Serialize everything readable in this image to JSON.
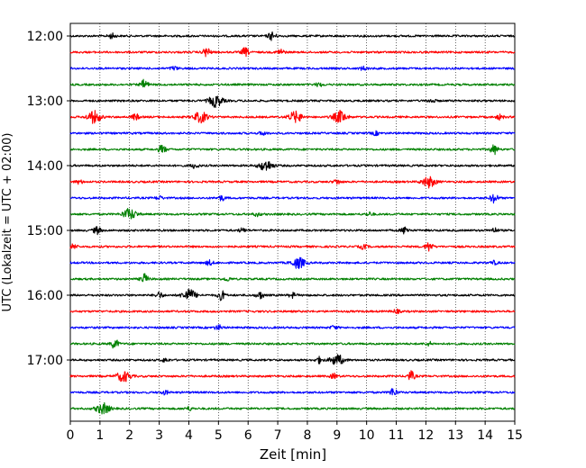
{
  "chart_data": {
    "type": "line",
    "xlabel": "Zeit  [min]",
    "ylabel": "UTC (Lokalzeit = UTC + 02:00)",
    "xlim": [
      0,
      15
    ],
    "x_ticks": [
      0,
      1,
      2,
      3,
      4,
      5,
      6,
      7,
      8,
      9,
      10,
      11,
      12,
      13,
      14,
      15
    ],
    "y_ticks": [
      "12:00",
      "13:00",
      "14:00",
      "15:00",
      "16:00",
      "17:00"
    ],
    "grid": "vertical dotted",
    "color_cycle": [
      "#000000",
      "#ff0000",
      "#0000ff",
      "#008000"
    ],
    "series": [
      {
        "start": "12:00",
        "events": [
          [
            1.4,
            0.4
          ],
          [
            6.8,
            0.7
          ]
        ]
      },
      {
        "start": "12:15",
        "events": [
          [
            4.6,
            0.8
          ],
          [
            5.9,
            0.7
          ],
          [
            7.1,
            0.5
          ]
        ]
      },
      {
        "start": "12:30",
        "events": [
          [
            3.5,
            0.3
          ],
          [
            9.9,
            0.3
          ]
        ]
      },
      {
        "start": "12:45",
        "events": [
          [
            2.5,
            0.8
          ],
          [
            8.4,
            0.3
          ]
        ]
      },
      {
        "start": "13:00",
        "events": [
          [
            4.9,
            1.0
          ],
          [
            12.2,
            0.3
          ]
        ]
      },
      {
        "start": "13:15",
        "events": [
          [
            0.8,
            1.0
          ],
          [
            4.4,
            0.9
          ],
          [
            7.6,
            0.9
          ],
          [
            9.1,
            1.0
          ],
          [
            2.2,
            0.5
          ],
          [
            14.5,
            0.4
          ]
        ]
      },
      {
        "start": "13:30",
        "events": [
          [
            6.5,
            0.3
          ],
          [
            10.3,
            0.3
          ]
        ]
      },
      {
        "start": "13:45",
        "events": [
          [
            3.1,
            0.7
          ],
          [
            14.3,
            0.8
          ]
        ]
      },
      {
        "start": "14:00",
        "events": [
          [
            6.6,
            0.9
          ],
          [
            4.2,
            0.4
          ]
        ]
      },
      {
        "start": "14:15",
        "events": [
          [
            12.1,
            0.9
          ],
          [
            9.0,
            0.4
          ],
          [
            0.3,
            0.3
          ]
        ]
      },
      {
        "start": "14:30",
        "events": [
          [
            14.3,
            0.8
          ],
          [
            5.1,
            0.4
          ],
          [
            3.0,
            0.3
          ]
        ]
      },
      {
        "start": "14:45",
        "events": [
          [
            2.0,
            0.9
          ],
          [
            6.3,
            0.3
          ],
          [
            10.1,
            0.3
          ]
        ]
      },
      {
        "start": "15:00",
        "events": [
          [
            0.9,
            0.6
          ],
          [
            11.3,
            0.6
          ],
          [
            14.3,
            0.4
          ],
          [
            5.8,
            0.3
          ]
        ]
      },
      {
        "start": "15:15",
        "events": [
          [
            12.1,
            0.8
          ],
          [
            0.1,
            0.4
          ],
          [
            9.9,
            0.4
          ]
        ]
      },
      {
        "start": "15:30",
        "events": [
          [
            7.7,
            0.9
          ],
          [
            4.7,
            0.4
          ],
          [
            14.3,
            0.3
          ]
        ]
      },
      {
        "start": "15:45",
        "events": [
          [
            2.5,
            0.8
          ],
          [
            5.3,
            0.3
          ]
        ]
      },
      {
        "start": "16:00",
        "events": [
          [
            4.0,
            1.0
          ],
          [
            5.1,
            0.8
          ],
          [
            6.4,
            0.6
          ],
          [
            3.0,
            0.5
          ],
          [
            7.5,
            0.4
          ]
        ]
      },
      {
        "start": "16:15",
        "events": [
          [
            11.0,
            0.3
          ]
        ]
      },
      {
        "start": "16:30",
        "events": [
          [
            5.0,
            0.4
          ],
          [
            8.9,
            0.3
          ]
        ]
      },
      {
        "start": "16:45",
        "events": [
          [
            1.5,
            0.8
          ],
          [
            12.1,
            0.3
          ]
        ]
      },
      {
        "start": "17:00",
        "events": [
          [
            9.0,
            0.9
          ],
          [
            8.4,
            0.5
          ],
          [
            3.2,
            0.3
          ]
        ]
      },
      {
        "start": "17:15",
        "events": [
          [
            1.8,
            0.9
          ],
          [
            11.5,
            0.8
          ],
          [
            8.9,
            0.4
          ]
        ]
      },
      {
        "start": "17:30",
        "events": [
          [
            10.9,
            0.7
          ],
          [
            3.2,
            0.3
          ]
        ]
      },
      {
        "start": "17:45",
        "events": [
          [
            1.1,
            0.9
          ],
          [
            4.0,
            0.3
          ]
        ]
      }
    ]
  }
}
